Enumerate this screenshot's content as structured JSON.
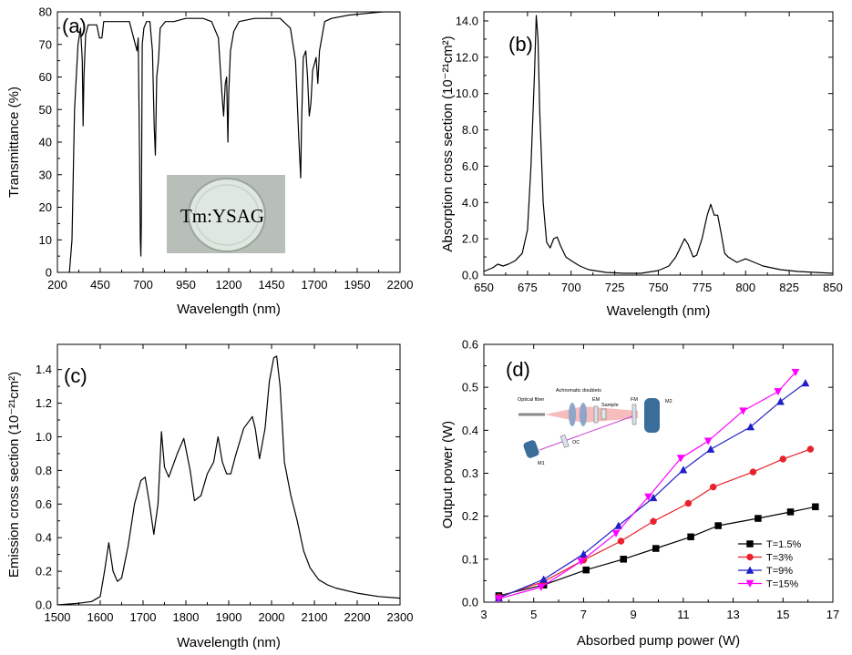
{
  "chart_data": [
    {
      "panel": "(a)",
      "type": "line",
      "xlabel": "Wavelength (nm)",
      "ylabel": "Transmittance (%)",
      "xlim": [
        200,
        2200
      ],
      "ylim": [
        0,
        80
      ],
      "xticks": [
        200,
        450,
        700,
        950,
        1200,
        1450,
        1700,
        1950,
        2200
      ],
      "yticks": [
        0,
        10,
        20,
        30,
        40,
        50,
        60,
        70,
        80
      ],
      "inset_text": "Tm:YSAG",
      "series": [
        {
          "x": [
            270,
            285,
            300,
            320,
            335,
            345,
            350,
            355,
            365,
            380,
            400,
            430,
            445,
            455,
            460,
            470,
            500,
            560,
            620,
            655,
            665,
            672,
            680,
            684,
            687,
            690,
            695,
            705,
            720,
            740,
            755,
            765,
            772,
            780,
            790,
            800,
            830,
            880,
            950,
            1050,
            1100,
            1140,
            1160,
            1170,
            1180,
            1188,
            1195,
            1200,
            1210,
            1230,
            1260,
            1350,
            1450,
            1500,
            1560,
            1590,
            1610,
            1620,
            1625,
            1635,
            1650,
            1660,
            1670,
            1680,
            1690,
            1710,
            1720,
            1730,
            1760,
            1800,
            1900,
            2000,
            2100,
            2200
          ],
          "y": [
            0,
            10,
            50,
            70,
            75,
            65,
            45,
            60,
            73,
            76,
            76,
            76,
            72,
            72,
            72,
            77,
            77,
            77,
            77,
            70,
            68,
            72,
            35,
            10,
            5,
            15,
            70,
            75,
            77,
            77,
            68,
            45,
            36,
            60,
            65,
            75,
            77,
            77,
            78,
            78,
            77,
            72,
            55,
            48,
            58,
            60,
            40,
            55,
            68,
            74,
            77,
            78,
            78,
            78,
            75,
            65,
            40,
            29,
            45,
            66,
            68,
            60,
            48,
            52,
            62,
            66,
            58,
            68,
            77,
            78,
            79,
            79.5,
            80,
            80
          ]
        }
      ]
    },
    {
      "panel": "(b)",
      "type": "line",
      "xlabel": "Wavelength (nm)",
      "ylabel": "Absorption cross section (10⁻²¹cm²)",
      "xlim": [
        650,
        850
      ],
      "ylim": [
        0,
        14.5
      ],
      "xticks": [
        650,
        675,
        700,
        725,
        750,
        775,
        800,
        825,
        850
      ],
      "yticks": [
        0.0,
        2.0,
        4.0,
        6.0,
        8.0,
        10.0,
        12.0,
        14.0
      ],
      "ytick_labels": [
        "0.0",
        "2.0",
        "4.0",
        "6.0",
        "8.0",
        "10.0",
        "12.0",
        "14.0"
      ],
      "series": [
        {
          "x": [
            650,
            655,
            658,
            661,
            664,
            668,
            672,
            675,
            677,
            679,
            680,
            681,
            682,
            684,
            686,
            688,
            690,
            692,
            694,
            697,
            700,
            705,
            710,
            720,
            730,
            740,
            750,
            756,
            760,
            763,
            765,
            767,
            770,
            772,
            775,
            778,
            780,
            782,
            784,
            786,
            788,
            790,
            795,
            800,
            805,
            810,
            820,
            830,
            840,
            850
          ],
          "y": [
            0.2,
            0.4,
            0.6,
            0.5,
            0.6,
            0.8,
            1.2,
            2.5,
            6,
            11,
            14.3,
            13,
            9,
            4,
            1.8,
            1.5,
            2.0,
            2.1,
            1.6,
            1.0,
            0.8,
            0.5,
            0.3,
            0.15,
            0.1,
            0.1,
            0.25,
            0.5,
            1.0,
            1.6,
            2.0,
            1.7,
            1.0,
            1.1,
            2.0,
            3.3,
            3.9,
            3.3,
            3.3,
            2.3,
            1.2,
            1.0,
            0.7,
            0.9,
            0.7,
            0.5,
            0.3,
            0.2,
            0.15,
            0.1
          ]
        }
      ]
    },
    {
      "panel": "(c)",
      "type": "line",
      "xlabel": "Wavelength (nm)",
      "ylabel": "Emission cross section (10⁻²¹cm²)",
      "xlim": [
        1500,
        2300
      ],
      "ylim": [
        0,
        1.55
      ],
      "xticks": [
        1500,
        1600,
        1700,
        1800,
        1900,
        2000,
        2100,
        2200,
        2300
      ],
      "yticks": [
        0.0,
        0.2,
        0.4,
        0.6,
        0.8,
        1.0,
        1.2,
        1.4
      ],
      "ytick_labels": [
        "0.0",
        "0.2",
        "0.4",
        "0.6",
        "0.8",
        "1.0",
        "1.2",
        "1.4"
      ],
      "series": [
        {
          "x": [
            1500,
            1550,
            1580,
            1600,
            1610,
            1620,
            1630,
            1640,
            1650,
            1665,
            1680,
            1695,
            1705,
            1715,
            1725,
            1735,
            1743,
            1750,
            1760,
            1780,
            1795,
            1810,
            1820,
            1835,
            1850,
            1865,
            1875,
            1885,
            1895,
            1905,
            1915,
            1935,
            1955,
            1962,
            1972,
            1985,
            1995,
            2005,
            2012,
            2020,
            2030,
            2045,
            2060,
            2075,
            2090,
            2110,
            2130,
            2150,
            2200,
            2250,
            2300
          ],
          "y": [
            0.0,
            0.01,
            0.02,
            0.05,
            0.2,
            0.37,
            0.2,
            0.14,
            0.16,
            0.35,
            0.6,
            0.74,
            0.76,
            0.6,
            0.42,
            0.6,
            1.03,
            0.82,
            0.76,
            0.9,
            0.99,
            0.8,
            0.62,
            0.65,
            0.78,
            0.85,
            1.0,
            0.85,
            0.78,
            0.78,
            0.88,
            1.05,
            1.12,
            1.05,
            0.87,
            1.05,
            1.33,
            1.47,
            1.48,
            1.3,
            0.85,
            0.65,
            0.5,
            0.32,
            0.22,
            0.15,
            0.12,
            0.1,
            0.07,
            0.05,
            0.04
          ]
        }
      ]
    },
    {
      "panel": "(d)",
      "type": "line",
      "xlabel": "Absorbed pump power (W)",
      "ylabel": "Output power (W)",
      "xlim": [
        3,
        17
      ],
      "ylim": [
        0,
        0.6
      ],
      "xticks": [
        3,
        5,
        7,
        9,
        11,
        13,
        15,
        17
      ],
      "yticks": [
        0.0,
        0.1,
        0.2,
        0.3,
        0.4,
        0.5,
        0.6
      ],
      "ytick_labels": [
        "0.0",
        "0.1",
        "0.2",
        "0.3",
        "0.4",
        "0.5",
        "0.6"
      ],
      "legend_placement": "bottom-right",
      "inset_labels": [
        "Optical fiber",
        "Achromatic doublets",
        "EM",
        "Sample",
        "FM",
        "M2",
        "OC",
        "M1"
      ],
      "series": [
        {
          "name": "T=1.5%",
          "color": "#000000",
          "marker": "square",
          "x": [
            3.6,
            5.4,
            7.1,
            8.6,
            9.9,
            11.3,
            12.4,
            14.0,
            15.3,
            16.3
          ],
          "y": [
            0.015,
            0.04,
            0.075,
            0.1,
            0.125,
            0.152,
            0.178,
            0.195,
            0.21,
            0.222
          ]
        },
        {
          "name": "T=3%",
          "color": "#e8212b",
          "marker": "circle",
          "x": [
            3.6,
            5.4,
            7.0,
            8.5,
            9.8,
            11.2,
            12.2,
            13.8,
            15.0,
            16.1
          ],
          "y": [
            0.012,
            0.048,
            0.098,
            0.142,
            0.188,
            0.23,
            0.268,
            0.303,
            0.333,
            0.356
          ]
        },
        {
          "name": "T=9%",
          "color": "#1f1fc9",
          "marker": "triangle-up",
          "x": [
            3.6,
            5.4,
            7.0,
            8.4,
            9.8,
            11.0,
            12.1,
            13.7,
            14.9,
            15.9
          ],
          "y": [
            0.01,
            0.053,
            0.112,
            0.178,
            0.243,
            0.308,
            0.356,
            0.408,
            0.467,
            0.51
          ]
        },
        {
          "name": "T=15%",
          "color": "#ff00ff",
          "marker": "triangle-down",
          "x": [
            3.6,
            5.3,
            6.9,
            8.3,
            9.6,
            10.9,
            12.0,
            13.4,
            14.8,
            15.5
          ],
          "y": [
            0.008,
            0.035,
            0.095,
            0.16,
            0.245,
            0.335,
            0.375,
            0.445,
            0.49,
            0.535
          ]
        }
      ]
    }
  ]
}
